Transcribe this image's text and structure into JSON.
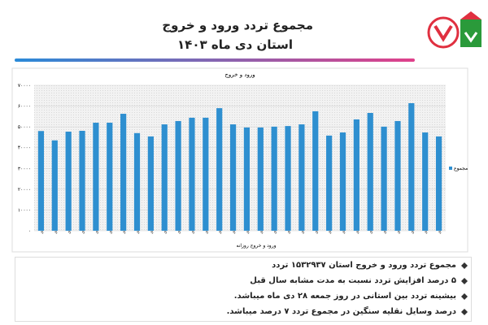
{
  "header": {
    "title": "مجموع تردد ورود و خروج",
    "subtitle": "استان دی ماه ۱۴۰۳"
  },
  "chart_data": {
    "type": "bar",
    "title": "ورود و خروج",
    "x_label": "ورود و خروج روزانه",
    "categories": [
      "۱ دی",
      "۲ دی",
      "۳ دی",
      "۴ دی",
      "۵ دی",
      "۶ دی",
      "۷ دی",
      "۸ دی",
      "۹ دی",
      "۱۰ دی",
      "۱۱ دی",
      "۱۲ دی",
      "۱۳ دی",
      "۱۴ دی",
      "۱۵ دی",
      "۱۶ دی",
      "۱۷ دی",
      "۱۸ دی",
      "۱۹ دی",
      "۲۰ دی",
      "۲۱ دی",
      "۲۲ دی",
      "۲۳ دی",
      "۲۴ دی",
      "۲۵ دی",
      "۲۶ دی",
      "۲۷ دی",
      "۲۸ دی",
      "۲۹ دی",
      "۳۰ دی"
    ],
    "series": [
      {
        "name": "مجموع",
        "color": "#2e8fd0",
        "values": [
          48000,
          43500,
          47700,
          48100,
          52000,
          52000,
          56300,
          47000,
          45400,
          51200,
          52800,
          54400,
          54400,
          59000,
          51200,
          49700,
          49700,
          50100,
          50400,
          51200,
          57500,
          45800,
          47300,
          53600,
          56700,
          50100,
          52800,
          61400,
          47300,
          45400
        ]
      }
    ],
    "ylim": [
      0,
      70000
    ],
    "yticks": [
      {
        "value": 0,
        "label": "۰"
      },
      {
        "value": 10000,
        "label": "۱۰۰۰۰"
      },
      {
        "value": 20000,
        "label": "۲۰۰۰۰"
      },
      {
        "value": 30000,
        "label": "۳۰۰۰۰"
      },
      {
        "value": 40000,
        "label": "۴۰۰۰۰"
      },
      {
        "value": 50000,
        "label": "۵۰۰۰۰"
      },
      {
        "value": 60000,
        "label": "۶۰۰۰۰"
      },
      {
        "value": 70000,
        "label": "۷۰۰۰۰"
      }
    ],
    "grid": true,
    "legend": "right"
  },
  "notes": [
    "مجموع تردد ورود و خروج استان ۱۵۳۲۹۳۷ تردد",
    "۵ درصد افزایش تردد نسبت به مدت مشابه سال قبل",
    "بیشینه تردد بین استانی در روز جمعه ۲۸ دی ماه میباشد.",
    "درصد وسایل نقلیه سنگین در مجموع تردد ۷ درصد میباشد."
  ]
}
